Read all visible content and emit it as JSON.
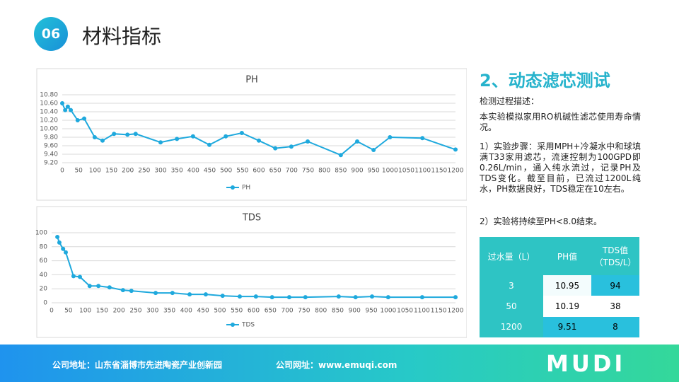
{
  "header": {
    "number": "06",
    "title": "材料指标"
  },
  "chart_data": [
    {
      "type": "line",
      "title": "PH",
      "x": [
        0,
        9,
        17,
        26,
        47,
        67,
        99,
        123,
        158,
        199,
        224,
        300,
        350,
        399,
        449,
        499,
        548,
        600,
        650,
        699,
        749,
        850,
        900,
        950,
        1000,
        1099,
        1200
      ],
      "series": [
        {
          "name": "PH",
          "color": "#1fa9dd",
          "values": [
            10.6,
            10.44,
            10.52,
            10.44,
            10.2,
            10.24,
            9.8,
            9.72,
            9.88,
            9.86,
            9.88,
            9.68,
            9.76,
            9.82,
            9.62,
            9.82,
            9.9,
            9.72,
            9.54,
            9.58,
            9.7,
            9.38,
            9.7,
            9.5,
            9.8,
            9.78,
            9.51
          ]
        }
      ],
      "xlim": [
        0,
        1200
      ],
      "xticks": [
        0,
        50,
        100,
        150,
        200,
        250,
        300,
        350,
        400,
        450,
        500,
        550,
        600,
        650,
        700,
        750,
        800,
        850,
        900,
        950,
        1000,
        1050,
        1100,
        1150,
        1200
      ],
      "ylim": [
        9.2,
        10.8
      ],
      "yticks": [
        {
          "value": 9.2,
          "label": "9.20"
        },
        {
          "value": 9.4,
          "label": "9.40"
        },
        {
          "value": 9.6,
          "label": "9.60"
        },
        {
          "value": 9.8,
          "label": "9.80"
        },
        {
          "value": 10.0,
          "label": "10.00"
        },
        {
          "value": 10.2,
          "label": "10.20"
        },
        {
          "value": 10.4,
          "label": "10.40"
        },
        {
          "value": 10.6,
          "label": "10.60"
        },
        {
          "value": 10.8,
          "label": "10.80"
        }
      ],
      "grid": true,
      "legend": "bottom"
    },
    {
      "type": "line",
      "title": "TDS",
      "x": [
        17,
        23,
        34,
        42,
        65,
        84,
        113,
        139,
        172,
        212,
        237,
        309,
        359,
        410,
        458,
        508,
        559,
        607,
        655,
        706,
        754,
        853,
        903,
        952,
        1000,
        1101,
        1200
      ],
      "series": [
        {
          "name": "TDS",
          "color": "#1fa9dd",
          "values": [
            94,
            86,
            77,
            72,
            38,
            37,
            24,
            24,
            22,
            18,
            17,
            14,
            14,
            12,
            12,
            10,
            9,
            9,
            8,
            8,
            8,
            9,
            8,
            9,
            8,
            8,
            8
          ]
        }
      ],
      "xlim": [
        0,
        1200
      ],
      "xticks": [
        0,
        50,
        100,
        150,
        200,
        250,
        300,
        350,
        400,
        450,
        500,
        550,
        600,
        650,
        700,
        750,
        800,
        850,
        900,
        950,
        1000,
        1050,
        1100,
        1150,
        1200
      ],
      "ylim": [
        0,
        100
      ],
      "yticks": [
        0,
        20,
        40,
        60,
        80,
        100
      ],
      "grid": true,
      "legend": "bottom"
    }
  ],
  "text": {
    "heading": "2、动态滤芯测试",
    "label": "检测过程描述：",
    "paragraphs": [
      "本实验模拟家用RO机碱性滤芯使用寿命情况。",
      "1）实验步骤：采用MPH+冷凝水中和球填满T33家用滤芯，流速控制为100GPD即0.26L/min，通入纯水流过，记录PH及TDS变化。截至目前，已流过1200L纯水，PH数据良好，TDS稳定在10左右。",
      "2）实验将持续至PH<8.0结束。"
    ]
  },
  "table": {
    "header": [
      "过水量（L）",
      "PH值",
      "TDS值（TDS/L）"
    ],
    "rows": [
      [
        "3",
        "10.95",
        "94"
      ],
      [
        "50",
        "10.19",
        "38"
      ],
      [
        "1200",
        "9.51",
        "8"
      ]
    ]
  },
  "footer": {
    "address": "公司地址：山东省淄博市先进陶瓷产业创新园",
    "website": "公司网址：www.emuqi.com",
    "logo": "MUDI"
  }
}
